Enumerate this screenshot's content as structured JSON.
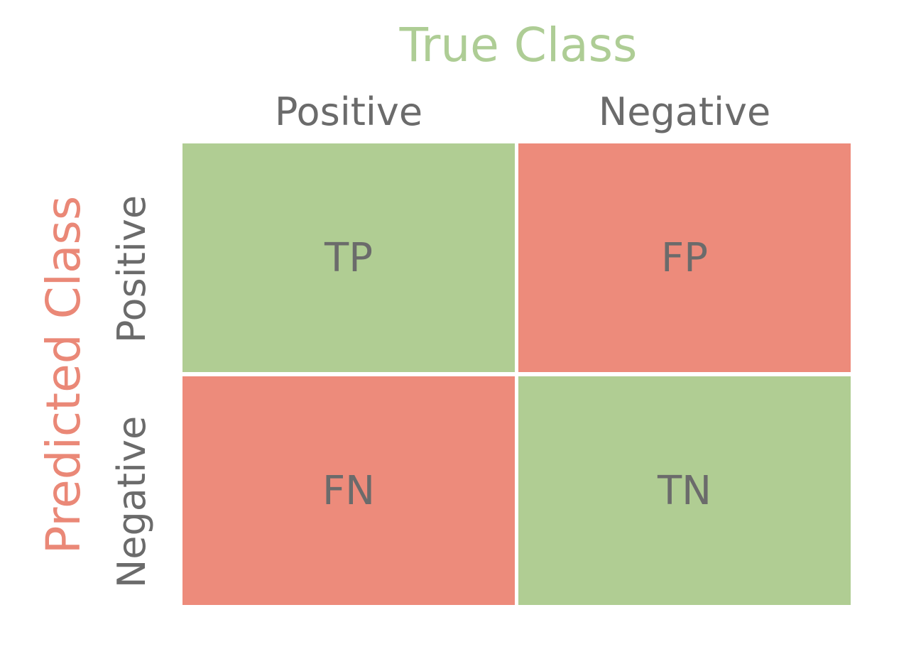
{
  "colors": {
    "correct": "#b0cd93",
    "incorrect": "#ed8b7b",
    "true_class_title": "#aecd95",
    "predicted_class_title": "#ea8877",
    "label_text": "#6b6b6b"
  },
  "true_class": {
    "title": "True Class",
    "columns": [
      "Positive",
      "Negative"
    ]
  },
  "predicted_class": {
    "title": "Predicted Class",
    "rows": [
      "Positive",
      "Negative"
    ]
  },
  "matrix": [
    [
      {
        "label": "TP",
        "status": "correct"
      },
      {
        "label": "FP",
        "status": "incorrect"
      }
    ],
    [
      {
        "label": "FN",
        "status": "incorrect"
      },
      {
        "label": "TN",
        "status": "correct"
      }
    ]
  ]
}
